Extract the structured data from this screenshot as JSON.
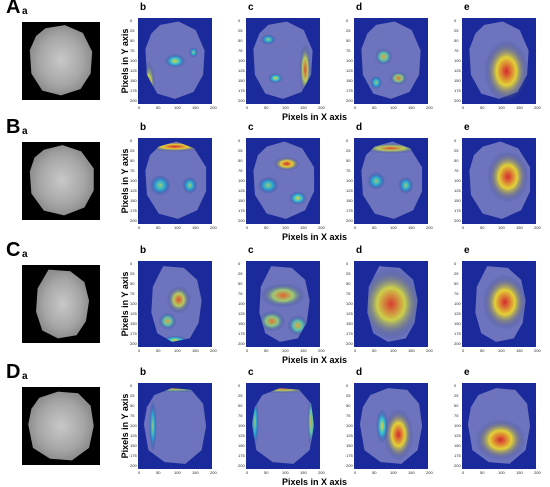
{
  "rows": [
    {
      "label": "A",
      "panels": [
        "a",
        "b",
        "c",
        "d",
        "e"
      ]
    },
    {
      "label": "B",
      "panels": [
        "a",
        "b",
        "c",
        "d",
        "e"
      ]
    },
    {
      "label": "C",
      "panels": [
        "a",
        "b",
        "c",
        "d",
        "e"
      ]
    },
    {
      "label": "D",
      "panels": [
        "a",
        "b",
        "c",
        "d",
        "e"
      ]
    }
  ],
  "axes": {
    "ylabel": "Pixels in  Y axis",
    "xlabel": "Pixels in  X axis",
    "y_ticks": [
      "0",
      "25",
      "50",
      "75",
      "100",
      "125",
      "150",
      "175",
      "200"
    ],
    "x_ticks": [
      "0",
      "50",
      "100",
      "150",
      "200"
    ]
  },
  "colors": {
    "background": "#ffffff",
    "heat_low": "#1a2a9a",
    "heat_mid": "#22c8e0",
    "heat_high": "#e02020"
  }
}
